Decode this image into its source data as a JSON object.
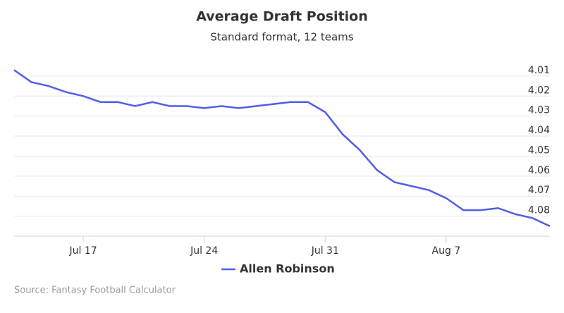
{
  "chart_data": {
    "type": "line",
    "title": "Average Draft Position",
    "subtitle": "Standard format, 12 teams",
    "source": "Source: Fantasy Football Calculator",
    "categories": [
      null,
      null,
      null,
      null,
      "Jul 17",
      null,
      null,
      null,
      null,
      null,
      null,
      "Jul 24",
      null,
      null,
      null,
      null,
      null,
      null,
      "Jul 31",
      null,
      null,
      null,
      null,
      null,
      null,
      "Aug 7",
      null,
      null,
      null,
      null,
      null,
      null
    ],
    "series": [
      {
        "name": "Allen Robinson",
        "color": "#4f5ee8",
        "values": [
          4.007,
          4.013,
          4.015,
          4.018,
          4.02,
          4.023,
          4.023,
          4.025,
          4.023,
          4.025,
          4.025,
          4.026,
          4.025,
          4.026,
          4.025,
          4.024,
          4.023,
          4.023,
          4.028,
          4.039,
          4.047,
          4.057,
          4.063,
          4.065,
          4.067,
          4.071,
          4.077,
          4.077,
          4.076,
          4.079,
          4.081,
          4.085
        ]
      }
    ],
    "ylim": [
      4.0,
      4.09
    ],
    "yticks": [
      4.01,
      4.02,
      4.03,
      4.04,
      4.05,
      4.06,
      4.07,
      4.08
    ],
    "reversed": true,
    "grid": true,
    "legend": "bottom"
  }
}
